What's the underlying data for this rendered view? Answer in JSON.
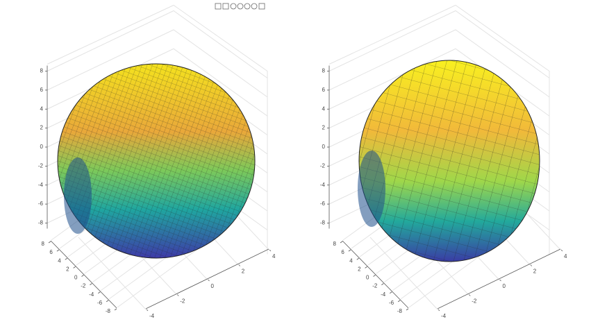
{
  "chart_data": [
    {
      "type": "surface",
      "xlim": [
        -4,
        4
      ],
      "xticks": [
        -4,
        -2,
        0,
        2,
        4
      ],
      "ylim": [
        -8,
        8
      ],
      "yticks": [
        8,
        6,
        4,
        2,
        0,
        -2,
        -4,
        -6,
        -8
      ],
      "zlim": [
        -8,
        8
      ],
      "zticks": [
        8,
        6,
        4,
        2,
        0,
        -2,
        -4,
        -6,
        -8
      ],
      "grid": true
    },
    {
      "type": "surface",
      "xlim": [
        -4,
        4
      ],
      "xticks": [
        -4,
        -2,
        0,
        2,
        4
      ],
      "ylim": [
        -8,
        8
      ],
      "yticks": [
        8,
        6,
        4,
        2,
        0,
        -2,
        -4,
        -6,
        -8
      ],
      "zlim": [
        -8,
        8
      ],
      "zticks": [
        8,
        6,
        4,
        2,
        0,
        -2,
        -4,
        -6,
        -8
      ],
      "grid": true
    }
  ]
}
